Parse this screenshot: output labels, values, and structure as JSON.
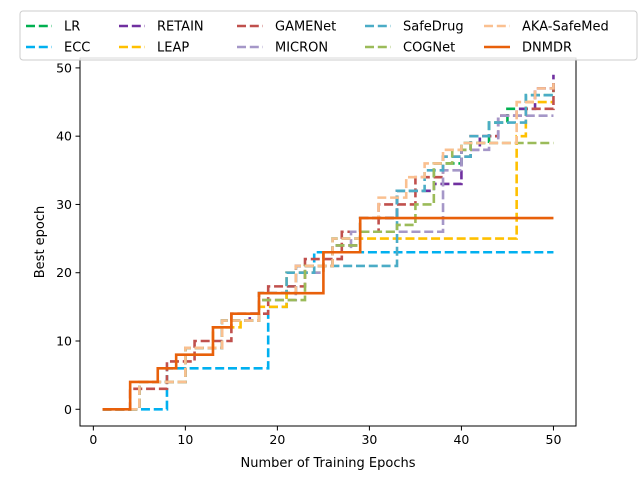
{
  "chart_data": {
    "type": "line",
    "title": "",
    "xlabel": "Number of Training Epochs",
    "ylabel": "Best epoch",
    "xlim": [
      -1.45,
      52.45
    ],
    "ylim": [
      -2.45,
      51.45
    ],
    "xticks": [
      0,
      10,
      20,
      30,
      40,
      50
    ],
    "yticks": [
      0,
      10,
      20,
      30,
      40,
      50
    ],
    "grid": false,
    "legend_position": "top",
    "series": [
      {
        "name": "LR",
        "color": "#00b050",
        "style": "dashed",
        "step": true,
        "x": [
          1,
          5,
          10,
          14,
          18,
          22,
          26,
          29,
          33,
          37,
          40,
          43,
          45,
          47,
          50
        ],
        "y": [
          0,
          4,
          9,
          13,
          17,
          21,
          25,
          28,
          32,
          36,
          39,
          42,
          44,
          46,
          48
        ]
      },
      {
        "name": "ECC",
        "color": "#00b0f0",
        "style": "dashed",
        "step": true,
        "x": [
          1,
          7,
          8,
          18,
          19,
          21,
          22,
          24,
          29,
          50
        ],
        "y": [
          0,
          0,
          6,
          6,
          15,
          18,
          21,
          23,
          23,
          23
        ]
      },
      {
        "name": "RETAIN",
        "color": "#7030a0",
        "style": "dashed",
        "step": true,
        "x": [
          1,
          5,
          10,
          14,
          17,
          18,
          22,
          26,
          29,
          33,
          37,
          40,
          42,
          44,
          46,
          48,
          50
        ],
        "y": [
          0,
          4,
          9,
          13,
          14,
          17,
          21,
          24,
          28,
          32,
          33,
          38,
          40,
          43,
          44,
          47,
          49
        ]
      },
      {
        "name": "LEAP",
        "color": "#ffc000",
        "style": "dashed",
        "step": true,
        "x": [
          1,
          5,
          10,
          13,
          16,
          18,
          21,
          25,
          29,
          45,
          46,
          47,
          50
        ],
        "y": [
          0,
          4,
          9,
          12,
          13,
          15,
          20,
          23,
          25,
          25,
          40,
          45,
          45
        ]
      },
      {
        "name": "GAMENet",
        "color": "#c0504d",
        "style": "dashed",
        "step": true,
        "x": [
          1,
          4,
          7,
          8,
          11,
          15,
          19,
          23,
          27,
          31,
          35,
          38,
          41,
          44,
          47,
          50
        ],
        "y": [
          0,
          3,
          3,
          7,
          10,
          14,
          18,
          22,
          26,
          30,
          34,
          37,
          40,
          43,
          44,
          48
        ]
      },
      {
        "name": "MICRON",
        "color": "#a597c8",
        "style": "dashed",
        "step": true,
        "x": [
          1,
          5,
          10,
          14,
          18,
          20,
          22,
          25,
          28,
          37,
          38,
          40,
          43,
          44,
          50
        ],
        "y": [
          0,
          4,
          9,
          13,
          16,
          16,
          20,
          23,
          26,
          26,
          35,
          38,
          39,
          43,
          43
        ]
      },
      {
        "name": "SafeDrug",
        "color": "#4bacc6",
        "style": "dashed",
        "step": true,
        "x": [
          1,
          5,
          10,
          14,
          18,
          21,
          24,
          32,
          33,
          35,
          36,
          38,
          41,
          43,
          45,
          47,
          50
        ],
        "y": [
          0,
          4,
          9,
          13,
          17,
          20,
          21,
          21,
          32,
          32,
          35,
          37,
          40,
          42,
          42,
          46,
          46
        ]
      },
      {
        "name": "COGNet",
        "color": "#9bbb59",
        "style": "dashed",
        "step": true,
        "x": [
          1,
          5,
          10,
          14,
          18,
          20,
          23,
          26,
          29,
          33,
          35,
          37,
          39,
          41,
          45,
          46,
          50
        ],
        "y": [
          0,
          4,
          9,
          13,
          16,
          16,
          21,
          24,
          26,
          27,
          30,
          36,
          38,
          39,
          39,
          39,
          39
        ]
      },
      {
        "name": "AKA-SafeMed",
        "color": "#fac090",
        "style": "dashed",
        "step": true,
        "x": [
          1,
          5,
          10,
          14,
          18,
          22,
          26,
          29,
          31,
          34,
          36,
          38,
          40,
          45,
          46,
          48,
          50
        ],
        "y": [
          0,
          4,
          9,
          13,
          17,
          21,
          25,
          28,
          31,
          34,
          36,
          38,
          39,
          39,
          45,
          47,
          48
        ]
      },
      {
        "name": "DNMDR",
        "color": "#e8600a",
        "style": "solid",
        "step": true,
        "x": [
          1,
          4,
          6,
          7,
          9,
          10,
          12,
          13,
          15,
          17,
          18,
          20,
          24,
          25,
          28,
          29,
          50
        ],
        "y": [
          0,
          4,
          4,
          6,
          8,
          8,
          8,
          12,
          14,
          14,
          17,
          17,
          17,
          23,
          23,
          28,
          28
        ]
      }
    ]
  }
}
